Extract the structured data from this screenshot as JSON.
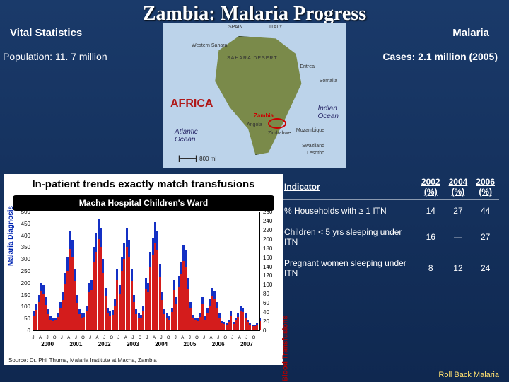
{
  "title": "Zambia: Malaria Progress",
  "vital_head": "Vital Statistics",
  "malaria_head": "Malaria",
  "population": "Population: 11. 7 million",
  "cases": "Cases: 2.1 million (2005)",
  "map": {
    "africa": "AFRICA",
    "atlantic": "Atlantic\nOcean",
    "indian": "Indian\nOcean",
    "scale": "800 mi",
    "zambia": "Zambia",
    "top_labels": [
      "SPAIN",
      "ITALY"
    ],
    "other_labels": [
      "Western Sahara",
      "SAHARA DESERT",
      "Eritrea",
      "Angola",
      "Zimbabwe",
      "Mozambique",
      "Swaziland",
      "Lesotho",
      "Somalia"
    ]
  },
  "table": {
    "headers": [
      "Indicator",
      "2002 (%)",
      "2004 (%)",
      "2006 (%)"
    ],
    "rows": [
      {
        "label": "% Households with ≥ 1 ITN",
        "v": [
          "14",
          "27",
          "44"
        ]
      },
      {
        "label": "Children < 5 yrs sleeping under ITN",
        "v": [
          "16",
          "—",
          "27"
        ]
      },
      {
        "label": "Pregnant women sleeping under ITN",
        "v": [
          "8",
          "12",
          "24"
        ]
      }
    ]
  },
  "chart": {
    "title": "In-patient trends exactly match transfusions",
    "subtitle": "Macha Hospital Children's Ward",
    "ylab_left": "Malaria Diagnosis",
    "ylab_right": "Blood Transfusions",
    "left_scale": {
      "min": 0,
      "max": 500,
      "step": 50,
      "color": "#1430c4"
    },
    "right_scale": {
      "min": 0,
      "max": 260,
      "step": 20,
      "color": "#d41c1c"
    },
    "years": [
      2000,
      2001,
      2002,
      2003,
      2004,
      2005,
      2006,
      2007
    ],
    "months_per_year": 12,
    "blue_series": [
      80,
      110,
      150,
      200,
      190,
      140,
      90,
      60,
      50,
      55,
      70,
      120,
      160,
      240,
      310,
      420,
      380,
      260,
      150,
      90,
      70,
      75,
      100,
      200,
      210,
      350,
      410,
      470,
      430,
      300,
      180,
      95,
      80,
      85,
      130,
      260,
      190,
      310,
      370,
      430,
      380,
      260,
      150,
      90,
      70,
      65,
      100,
      220,
      200,
      330,
      390,
      455,
      420,
      280,
      160,
      90,
      70,
      60,
      95,
      210,
      140,
      230,
      290,
      360,
      335,
      220,
      120,
      65,
      55,
      50,
      70,
      140,
      60,
      95,
      130,
      180,
      165,
      120,
      70,
      40,
      35,
      30,
      45,
      80,
      35,
      55,
      75,
      100,
      95,
      70,
      45,
      30,
      25,
      22,
      30,
      50
    ],
    "red_series": [
      32,
      45,
      62,
      85,
      80,
      56,
      36,
      24,
      20,
      22,
      30,
      50,
      66,
      100,
      130,
      178,
      160,
      108,
      60,
      36,
      28,
      30,
      42,
      84,
      88,
      148,
      172,
      200,
      182,
      126,
      74,
      38,
      32,
      34,
      54,
      110,
      80,
      130,
      156,
      182,
      160,
      108,
      62,
      36,
      28,
      26,
      42,
      92,
      84,
      138,
      164,
      192,
      176,
      118,
      66,
      36,
      28,
      24,
      40,
      88,
      58,
      96,
      122,
      152,
      140,
      92,
      50,
      26,
      22,
      20,
      30,
      58,
      24,
      38,
      54,
      76,
      70,
      50,
      28,
      16,
      14,
      12,
      18,
      32,
      14,
      22,
      30,
      42,
      40,
      28,
      18,
      12,
      10,
      9,
      12,
      20
    ],
    "source": "Source: Dr. Phil Thuma, Malaria Institute at Macha, Zambia"
  },
  "footer": "Roll Back Malaria",
  "colors": {
    "bg_top": "#1a3a6a",
    "bg_bot": "#0f2850",
    "blue": "#1430c4",
    "red": "#d41c1c",
    "map_sea": "#bcd3ea",
    "map_land": "#7a8a4a"
  }
}
